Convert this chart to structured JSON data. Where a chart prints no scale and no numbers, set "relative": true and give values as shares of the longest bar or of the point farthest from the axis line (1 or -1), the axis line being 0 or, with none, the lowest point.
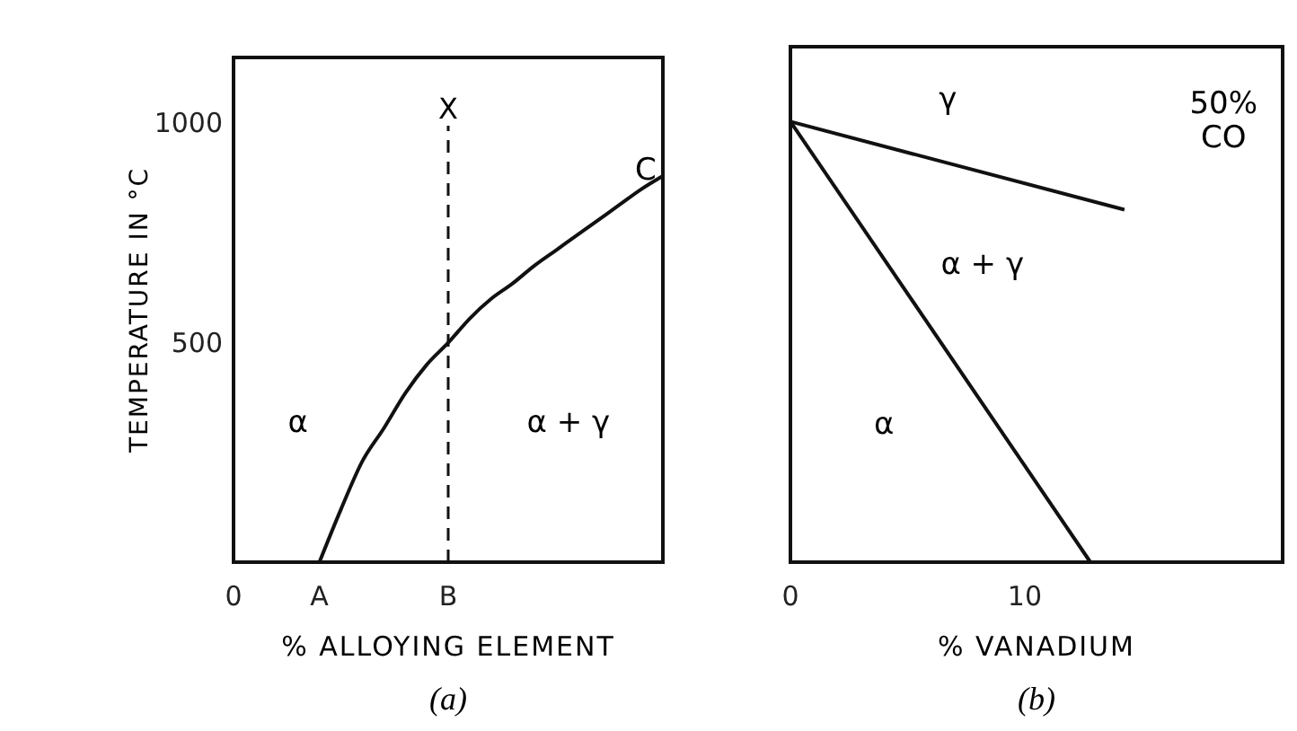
{
  "chart_data": [
    {
      "type": "line",
      "title": "(a)",
      "xlabel": "% ALLOYING ELEMENT",
      "ylabel": "TEMPERATURE IN °C",
      "categories": [
        "0",
        null,
        null,
        null,
        "A",
        null,
        null,
        null,
        null,
        null,
        "B",
        null,
        null,
        null,
        null,
        null,
        null,
        null,
        null,
        null,
        null
      ],
      "ylim": [
        0,
        1150
      ],
      "yticks": [
        500,
        1000
      ],
      "series": [
        {
          "color": "#111111",
          "values": [
            null,
            null,
            null,
            null,
            0,
            120,
            230,
            305,
            385,
            450,
            500,
            555,
            600,
            635,
            675,
            710,
            745,
            780,
            815,
            850,
            880
          ]
        }
      ],
      "ref_lines": [
        {
          "axis": "x",
          "value": "B",
          "label": "X",
          "line_style": "dashed",
          "color": "#111111"
        }
      ],
      "annotations": [
        "α",
        "α + γ",
        "C"
      ]
    },
    {
      "type": "line",
      "title": "(b)",
      "xlabel": "% VANADIUM",
      "relative": true,
      "xlim": [
        0,
        21
      ],
      "xticks": [
        0,
        10
      ],
      "tick_labels": "x",
      "series": [
        {
          "color": "#111111",
          "x": [
            0,
            14.25
          ],
          "values": [
            1,
            0.8
          ]
        },
        {
          "color": "#111111",
          "x": [
            0,
            12.8
          ],
          "values": [
            1,
            0
          ]
        }
      ],
      "annotations": [
        "γ",
        "α + γ",
        "α",
        "50%\nCO"
      ]
    }
  ]
}
